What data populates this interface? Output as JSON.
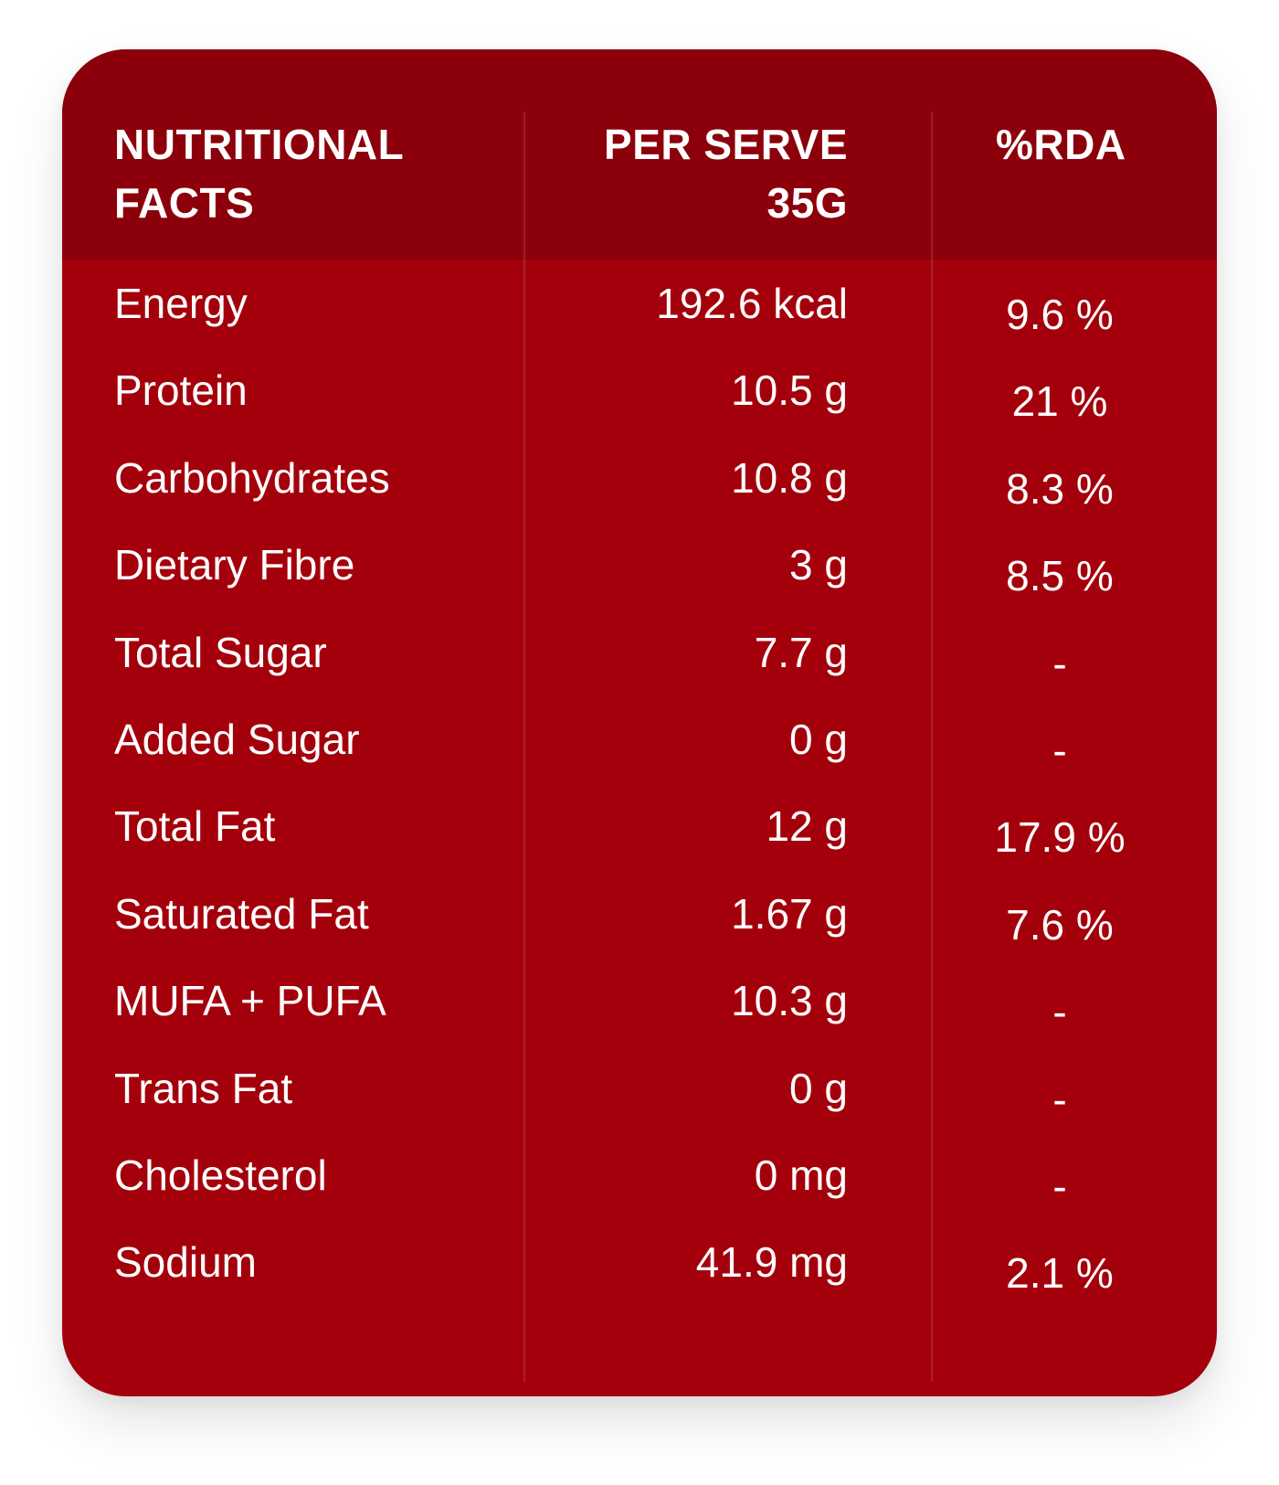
{
  "table": {
    "headers": {
      "name": [
        "NUTRITIONAL",
        "FACTS"
      ],
      "serve": [
        "PER SERVE",
        "35G"
      ],
      "rda": [
        "%RDA"
      ]
    },
    "rows": [
      {
        "name": "Energy",
        "serve": "192.6 kcal",
        "rda": "9.6 %"
      },
      {
        "name": "Protein",
        "serve": "10.5 g",
        "rda": "21 %"
      },
      {
        "name": "Carbohydrates",
        "serve": "10.8 g",
        "rda": "8.3 %"
      },
      {
        "name": "Dietary Fibre",
        "serve": "3 g",
        "rda": "8.5 %"
      },
      {
        "name": "Total Sugar",
        "serve": "7.7 g",
        "rda": "-"
      },
      {
        "name": "Added Sugar",
        "serve": "0 g",
        "rda": "-"
      },
      {
        "name": "Total Fat",
        "serve": "12 g",
        "rda": "17.9 %"
      },
      {
        "name": "Saturated Fat",
        "serve": "1.67 g",
        "rda": "7.6 %"
      },
      {
        "name": "MUFA + PUFA",
        "serve": "10.3 g",
        "rda": "-"
      },
      {
        "name": "Trans Fat",
        "serve": "0 g",
        "rda": "-"
      },
      {
        "name": "Cholesterol",
        "serve": "0 mg",
        "rda": "-"
      },
      {
        "name": "Sodium",
        "serve": "41.9 mg",
        "rda": "2.1 %"
      }
    ]
  },
  "colors": {
    "header_bg": "#8c000b",
    "body_bg": "#a4000c",
    "text": "#ffffff"
  }
}
